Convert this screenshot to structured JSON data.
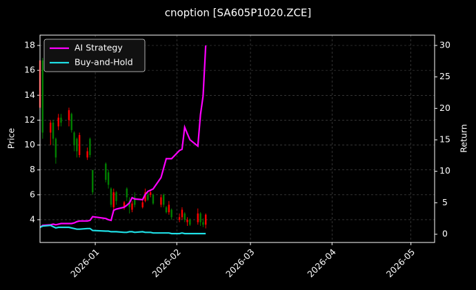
{
  "chart_data": {
    "type": "candlestick",
    "title": "cnoption [SA605P1020.ZCE]",
    "ylabel": "Price",
    "y2label": "Return",
    "x": [
      "2025-12-11",
      "2025-12-12",
      "2025-12-15",
      "2025-12-16",
      "2025-12-17",
      "2025-12-18",
      "2025-12-19",
      "2025-12-22",
      "2025-12-23",
      "2025-12-24",
      "2025-12-25",
      "2025-12-26",
      "2025-12-29",
      "2025-12-30",
      "2025-12-31",
      "2026-01-05",
      "2026-01-06",
      "2026-01-07",
      "2026-01-08",
      "2026-01-09",
      "2026-01-12",
      "2026-01-13",
      "2026-01-14",
      "2026-01-15",
      "2026-01-16",
      "2026-01-19",
      "2026-01-20",
      "2026-01-21",
      "2026-01-22",
      "2026-01-23",
      "2026-01-26",
      "2026-01-27",
      "2026-01-28",
      "2026-01-29",
      "2026-01-30",
      "2026-02-02",
      "2026-02-03",
      "2026-02-04",
      "2026-02-05",
      "2026-02-06",
      "2026-02-09",
      "2026-02-10",
      "2026-02-11",
      "2026-02-12"
    ],
    "open": [
      13.0,
      16.8,
      11.0,
      11.8,
      10.5,
      11.5,
      12.2,
      12.0,
      12.5,
      11.0,
      10.5,
      9.2,
      9.0,
      10.5,
      8.0,
      8.5,
      7.8,
      6.5,
      5.0,
      6.2,
      5.0,
      6.5,
      5.5,
      4.8,
      5.8,
      5.0,
      5.5,
      6.0,
      6.0,
      6.0,
      5.2,
      6.0,
      5.0,
      4.6,
      4.8,
      4.0,
      4.2,
      4.5,
      3.8,
      4.0,
      3.8,
      4.5,
      3.8,
      3.6
    ],
    "high": [
      17.0,
      17.0,
      12.0,
      12.0,
      10.6,
      12.5,
      12.5,
      13.0,
      12.6,
      11.1,
      10.6,
      11.0,
      9.8,
      10.6,
      8.0,
      8.6,
      8.0,
      6.6,
      6.5,
      6.3,
      5.5,
      6.6,
      5.8,
      5.5,
      6.2,
      5.6,
      6.5,
      6.2,
      6.3,
      6.1,
      6.0,
      6.1,
      5.1,
      5.5,
      4.9,
      4.5,
      5.0,
      4.6,
      4.2,
      4.1,
      4.9,
      4.6,
      4.1,
      4.5
    ],
    "low": [
      12.8,
      10.5,
      10.0,
      10.0,
      8.5,
      11.2,
      11.5,
      11.5,
      11.0,
      9.5,
      9.0,
      9.0,
      8.8,
      9.0,
      6.0,
      7.0,
      6.5,
      5.0,
      4.8,
      5.2,
      4.8,
      5.5,
      4.5,
      4.6,
      5.0,
      4.9,
      5.4,
      5.5,
      5.8,
      5.2,
      5.0,
      5.0,
      4.5,
      4.4,
      4.0,
      3.8,
      4.0,
      3.8,
      3.5,
      3.5,
      3.6,
      3.5,
      3.4,
      3.3
    ],
    "close": [
      16.8,
      11.0,
      11.8,
      10.5,
      9.0,
      12.2,
      11.8,
      12.8,
      11.2,
      10.0,
      9.5,
      10.8,
      9.5,
      9.2,
      6.2,
      7.2,
      6.8,
      5.2,
      6.2,
      5.5,
      5.4,
      5.8,
      5.0,
      5.3,
      5.2,
      5.4,
      6.2,
      5.6,
      6.2,
      5.3,
      5.8,
      5.2,
      4.6,
      5.2,
      4.2,
      4.2,
      4.8,
      4.0,
      4.0,
      3.6,
      4.5,
      3.8,
      3.6,
      4.4
    ],
    "up_color": "#ff0000",
    "down_color": "#008000",
    "series": [
      {
        "name": "AI Strategy",
        "color": "#ff00ff",
        "axis": "y2",
        "values": [
          1.1,
          1.4,
          1.5,
          1.6,
          1.5,
          1.6,
          1.7,
          1.7,
          1.7,
          1.8,
          2.0,
          2.1,
          2.1,
          2.2,
          2.8,
          2.5,
          2.3,
          2.2,
          3.8,
          4.0,
          4.3,
          4.6,
          5.0,
          5.8,
          5.6,
          5.5,
          6.3,
          6.8,
          7.0,
          7.2,
          9.0,
          10.5,
          12.0,
          12.0,
          12.0,
          13.3,
          13.5,
          17.0,
          16.0,
          15.0,
          14.0,
          19.0,
          22.0,
          30.0
        ]
      },
      {
        "name": "Buy-and-Hold",
        "color": "#1fe0e6",
        "axis": "y2",
        "values": [
          1.1,
          1.3,
          1.4,
          1.2,
          1.0,
          1.1,
          1.1,
          1.1,
          1.0,
          0.9,
          0.8,
          0.8,
          0.9,
          0.9,
          0.6,
          0.5,
          0.5,
          0.4,
          0.4,
          0.4,
          0.3,
          0.3,
          0.4,
          0.4,
          0.3,
          0.4,
          0.3,
          0.3,
          0.3,
          0.2,
          0.2,
          0.2,
          0.2,
          0.2,
          0.1,
          0.1,
          0.2,
          0.1,
          0.1,
          0.1,
          0.1,
          0.1,
          0.1,
          0.1
        ]
      }
    ],
    "xlim": [
      "2025-12-11",
      "2026-05-10"
    ],
    "xticks": [
      "2026-01",
      "2026-02",
      "2026-03",
      "2026-04",
      "2026-05"
    ],
    "ylim": [
      2.17,
      18.83
    ],
    "yticks": [
      4,
      6,
      8,
      10,
      12,
      14,
      16,
      18
    ],
    "y2lim": [
      -1.31,
      31.64
    ],
    "y2ticks": [
      0,
      5,
      10,
      15,
      20,
      25,
      30
    ],
    "grid": true,
    "legend": "upper left"
  }
}
